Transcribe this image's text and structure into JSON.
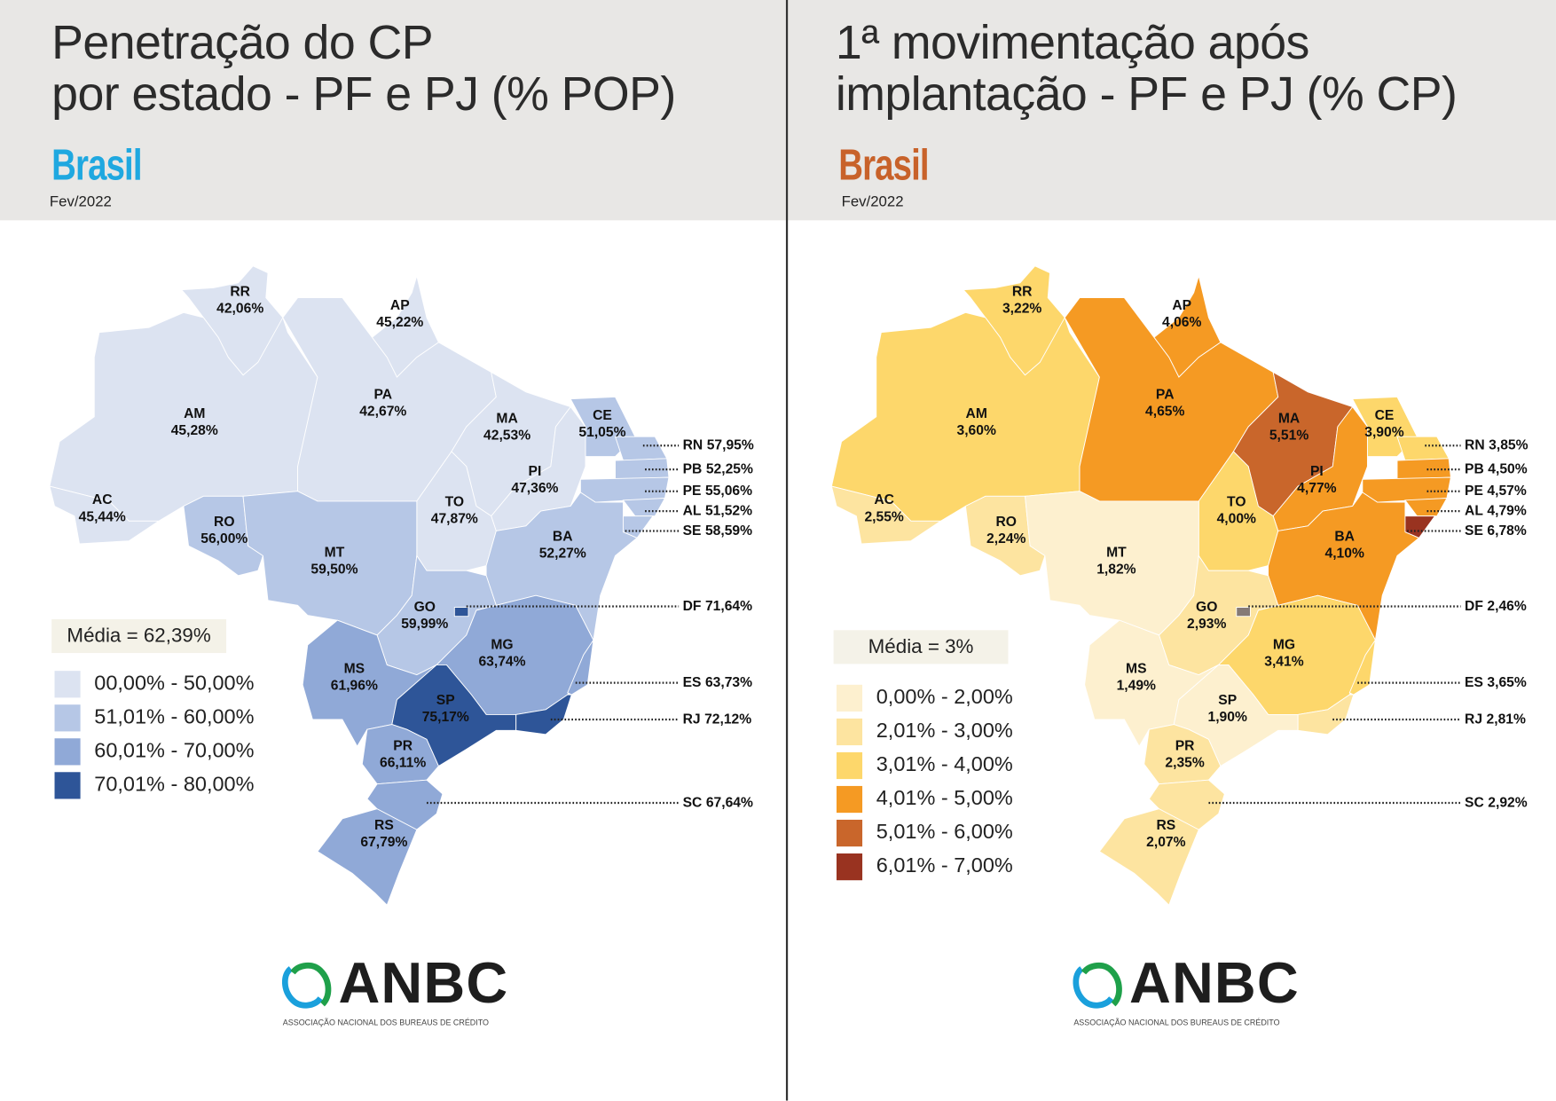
{
  "left": {
    "title_line1": "Penetração do CP",
    "title_line2": "por estado - PF e PJ (% POP)",
    "country": "Brasil",
    "country_color": "#1fa8e0",
    "date": "Fev/2022",
    "media": "Média = 62,39%",
    "legend": [
      {
        "label": "00,00% - 50,00%",
        "color": "#dce3f1",
        "max": 50
      },
      {
        "label": "51,01% - 60,00%",
        "color": "#b6c7e6",
        "max": 60
      },
      {
        "label": "60,01% - 70,00%",
        "color": "#90a9d7",
        "max": 70
      },
      {
        "label": "70,01% - 80,00%",
        "color": "#2e5598",
        "max": 80
      }
    ],
    "states": [
      {
        "code": "RR",
        "value": "42,06%"
      },
      {
        "code": "AP",
        "value": "45,22%"
      },
      {
        "code": "AM",
        "value": "45,28%"
      },
      {
        "code": "PA",
        "value": "42,67%"
      },
      {
        "code": "MA",
        "value": "42,53%"
      },
      {
        "code": "CE",
        "value": "51,05%"
      },
      {
        "code": "PI",
        "value": "47,36%"
      },
      {
        "code": "TO",
        "value": "47,87%"
      },
      {
        "code": "AC",
        "value": "45,44%"
      },
      {
        "code": "RO",
        "value": "56,00%"
      },
      {
        "code": "MT",
        "value": "59,50%"
      },
      {
        "code": "BA",
        "value": "52,27%"
      },
      {
        "code": "GO",
        "value": "59,99%"
      },
      {
        "code": "MG",
        "value": "63,74%"
      },
      {
        "code": "MS",
        "value": "61,96%"
      },
      {
        "code": "SP",
        "value": "75,17%"
      },
      {
        "code": "PR",
        "value": "66,11%"
      },
      {
        "code": "RS",
        "value": "67,79%"
      },
      {
        "code": "RN",
        "value": "57,95%"
      },
      {
        "code": "PB",
        "value": "52,25%"
      },
      {
        "code": "PE",
        "value": "55,06%"
      },
      {
        "code": "AL",
        "value": "51,52%"
      },
      {
        "code": "SE",
        "value": "58,59%"
      },
      {
        "code": "DF",
        "value": "71,64%"
      },
      {
        "code": "ES",
        "value": "63,73%"
      },
      {
        "code": "RJ",
        "value": "72,12%"
      },
      {
        "code": "SC",
        "value": "67,64%"
      }
    ]
  },
  "right": {
    "title_line1": "1ª movimentação após",
    "title_line2": "implantação - PF e PJ (% CP)",
    "country": "Brasil",
    "country_color": "#c8622a",
    "date": "Fev/2022",
    "media": "Média = 3%",
    "df_color": "#857a76",
    "legend": [
      {
        "label": "0,00% - 2,00%",
        "color": "#fdf0cf",
        "max": 2
      },
      {
        "label": "2,01% - 3,00%",
        "color": "#fde4a0",
        "max": 3
      },
      {
        "label": "3,01% - 4,00%",
        "color": "#fdd76b",
        "max": 4
      },
      {
        "label": "4,01% - 5,00%",
        "color": "#f59a23",
        "max": 5
      },
      {
        "label": "5,01% - 6,00%",
        "color": "#c9662b",
        "max": 6
      },
      {
        "label": "6,01% - 7,00%",
        "color": "#993320",
        "max": 7
      }
    ],
    "states": [
      {
        "code": "RR",
        "value": "3,22%"
      },
      {
        "code": "AP",
        "value": "4,06%"
      },
      {
        "code": "AM",
        "value": "3,60%"
      },
      {
        "code": "PA",
        "value": "4,65%"
      },
      {
        "code": "MA",
        "value": "5,51%"
      },
      {
        "code": "CE",
        "value": "3,90%"
      },
      {
        "code": "PI",
        "value": "4,77%"
      },
      {
        "code": "TO",
        "value": "4,00%"
      },
      {
        "code": "AC",
        "value": "2,55%"
      },
      {
        "code": "RO",
        "value": "2,24%"
      },
      {
        "code": "MT",
        "value": "1,82%"
      },
      {
        "code": "BA",
        "value": "4,10%"
      },
      {
        "code": "GO",
        "value": "2,93%"
      },
      {
        "code": "MG",
        "value": "3,41%"
      },
      {
        "code": "MS",
        "value": "1,49%"
      },
      {
        "code": "SP",
        "value": "1,90%"
      },
      {
        "code": "PR",
        "value": "2,35%"
      },
      {
        "code": "RS",
        "value": "2,07%"
      },
      {
        "code": "RN",
        "value": "3,85%"
      },
      {
        "code": "PB",
        "value": "4,50%"
      },
      {
        "code": "PE",
        "value": "4,57%"
      },
      {
        "code": "AL",
        "value": "4,79%"
      },
      {
        "code": "SE",
        "value": "6,78%"
      },
      {
        "code": "DF",
        "value": "2,46%"
      },
      {
        "code": "ES",
        "value": "3,65%"
      },
      {
        "code": "RJ",
        "value": "2,81%"
      },
      {
        "code": "SC",
        "value": "2,92%"
      }
    ]
  },
  "logo": {
    "name": "ANBC",
    "subtitle": "ASSOCIAÇÃO NACIONAL DOS BUREAUS DE CRÉDITO"
  }
}
